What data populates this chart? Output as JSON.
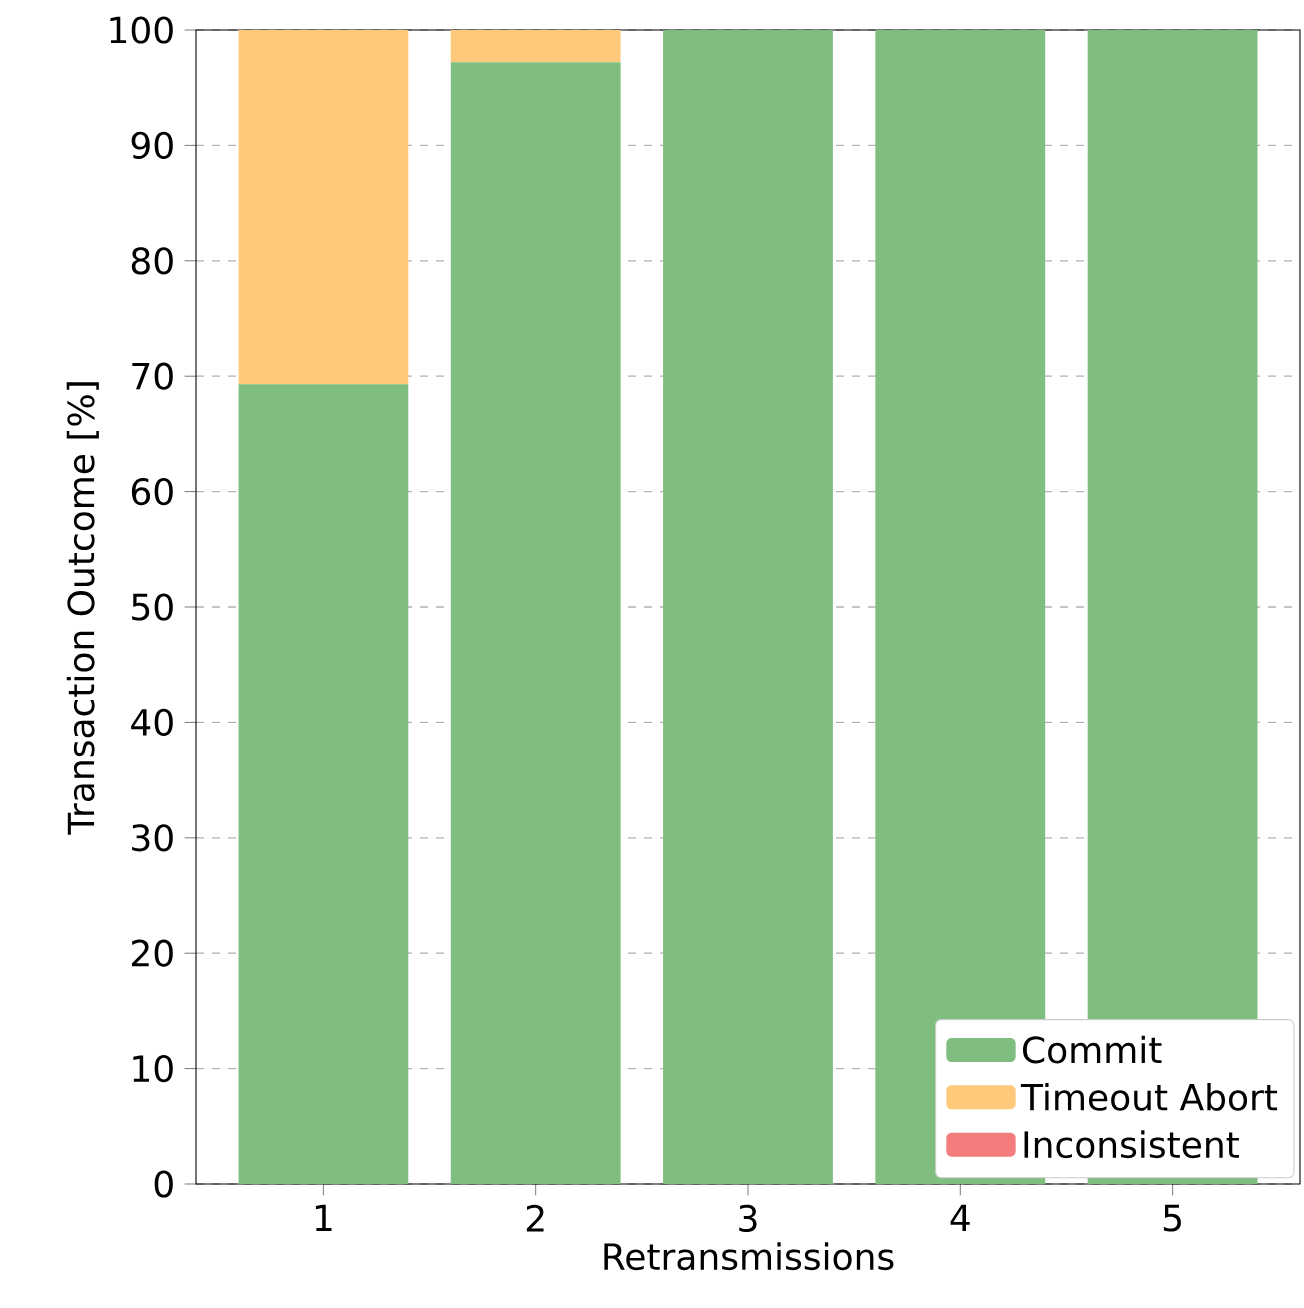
{
  "chart_data": {
    "type": "bar",
    "stacked": true,
    "xlabel": "Retransmissions",
    "ylabel": "Transaction Outcome [%]",
    "categories": [
      "1",
      "2",
      "3",
      "4",
      "5"
    ],
    "series": [
      {
        "name": "Commit",
        "color": "#7fbe7f",
        "values": [
          69.3,
          97.2,
          100,
          100,
          100
        ]
      },
      {
        "name": "Timeout Abort",
        "color": "#fec97a",
        "values": [
          30.7,
          2.8,
          0,
          0,
          0
        ]
      },
      {
        "name": "Inconsistent",
        "color": "#f47c7c",
        "values": [
          0,
          0,
          0,
          0,
          0
        ]
      }
    ],
    "ylim": [
      0,
      100
    ],
    "yticks": [
      0,
      10,
      20,
      30,
      40,
      50,
      60,
      70,
      80,
      90,
      100
    ],
    "grid": "y",
    "legend": "bottom right"
  }
}
